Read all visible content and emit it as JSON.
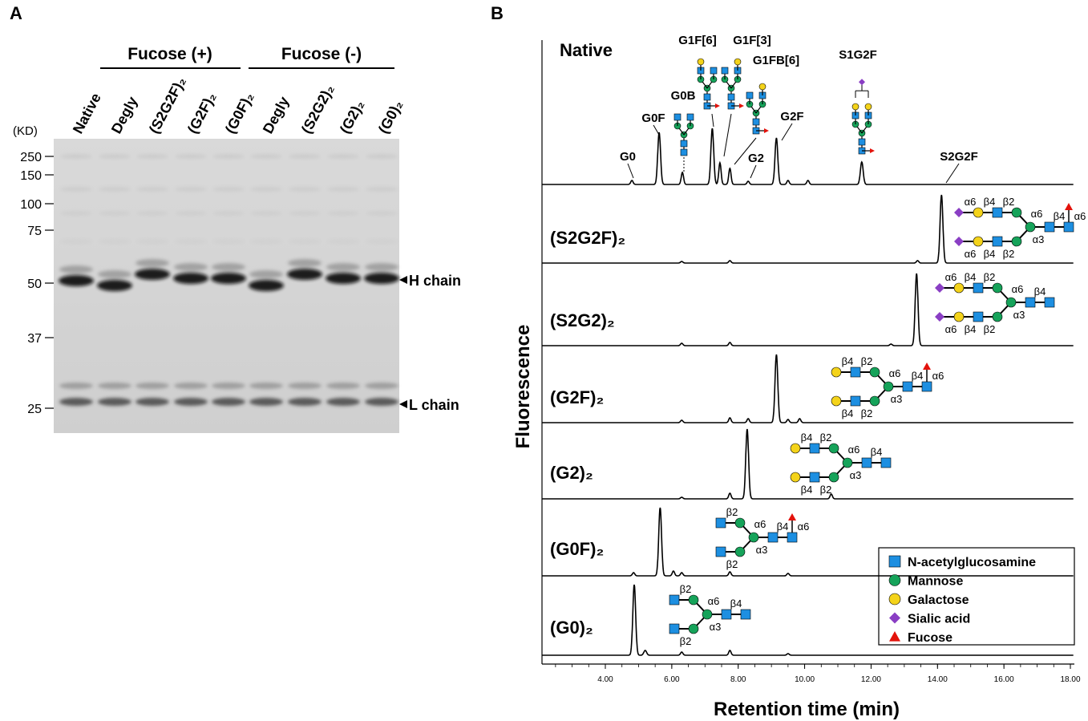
{
  "panel_a": {
    "label": "A",
    "groups": [
      "Fucose (+)",
      "Fucose (-)"
    ],
    "lanes": [
      "Native",
      "Degly",
      "(S2G2F)₂",
      "(G2F)₂",
      "(G0F)₂",
      "Degly",
      "(S2G2)₂",
      "(G2)₂",
      "(G0)₂"
    ],
    "mw_unit": "(KD)",
    "mw_markers": [
      "250",
      "150",
      "100",
      "75",
      "50",
      "37",
      "25"
    ],
    "bands": [
      "H chain",
      "L chain"
    ]
  },
  "panel_b": {
    "label": "B",
    "y_label": "Fluorescence",
    "x_label": "Retention time (min)",
    "x_ticks": [
      "4.00",
      "6.00",
      "8.00",
      "10.00",
      "12.00",
      "14.00",
      "16.00",
      "18.00"
    ],
    "peaks": [
      "G0",
      "G0F",
      "G0B",
      "G1F[6]",
      "G1F[3]",
      "G1FB[6]",
      "G2",
      "G2F",
      "S1G2F",
      "S2G2F"
    ],
    "traces": [
      {
        "name": "Native"
      },
      {
        "name": "(S2G2F)₂",
        "glycan": {
          "top": [
            "α6",
            "β4",
            "β2"
          ],
          "bottom": [
            "α6",
            "β4",
            "β2"
          ],
          "arm6": "α6",
          "arm3": "α3",
          "core": "β4",
          "fuc": "α6"
        }
      },
      {
        "name": "(S2G2)₂",
        "glycan": {
          "top": [
            "α6",
            "β4",
            "β2"
          ],
          "bottom": [
            "α6",
            "β4",
            "β2"
          ],
          "arm6": "α6",
          "arm3": "α3",
          "core": "β4"
        }
      },
      {
        "name": "(G2F)₂",
        "glycan": {
          "top": [
            "β4",
            "β2"
          ],
          "bottom": [
            "β4",
            "β2"
          ],
          "arm6": "α6",
          "arm3": "α3",
          "core": "β4",
          "fuc": "α6"
        }
      },
      {
        "name": "(G2)₂",
        "glycan": {
          "top": [
            "β4",
            "β2"
          ],
          "bottom": [
            "β4",
            "β2"
          ],
          "arm6": "α6",
          "arm3": "α3",
          "core": "β4"
        }
      },
      {
        "name": "(G0F)₂",
        "glycan": {
          "top": [
            "β2"
          ],
          "bottom": [
            "β2"
          ],
          "arm6": "α6",
          "arm3": "α3",
          "core": "β4",
          "fuc": "α6"
        }
      },
      {
        "name": "(G0)₂",
        "glycan": {
          "top": [
            "β2"
          ],
          "bottom": [
            "β2"
          ],
          "arm6": "α6",
          "arm3": "α3",
          "core": "β4"
        }
      }
    ],
    "legend": [
      "N-acetylglucosamine",
      "Mannose",
      "Galactose",
      "Sialic acid",
      "Fucose"
    ]
  }
}
